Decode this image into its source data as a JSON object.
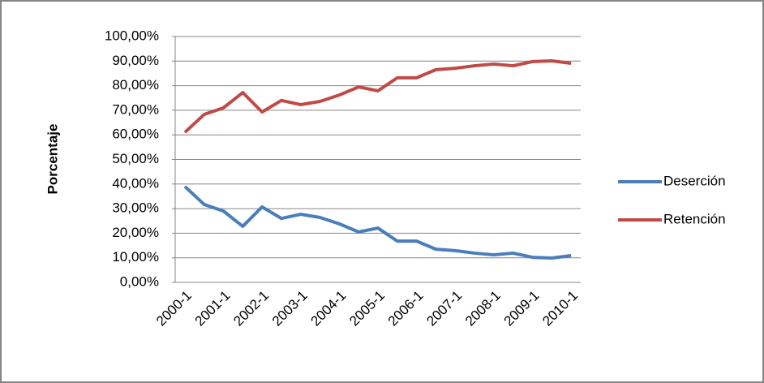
{
  "chart_data": {
    "type": "line",
    "y_label": "Porcentaje",
    "categories": [
      "2000-1",
      null,
      "2001-1",
      null,
      "2002-1",
      null,
      "2003-1",
      null,
      "2004-1",
      null,
      "2005-1",
      null,
      "2006-1",
      null,
      "2007-1",
      null,
      "2008-1",
      null,
      "2009-1",
      null,
      "2010-1"
    ],
    "series": [
      {
        "name": "Deserción",
        "color": "#4a7ebb",
        "values": [
          39,
          31.7,
          29,
          22.8,
          30.7,
          26,
          27.7,
          26.4,
          23.8,
          20.5,
          22.1,
          16.8,
          16.8,
          13.5,
          12.9,
          11.9,
          11.2,
          11.9,
          10.2,
          9.9,
          10.9
        ]
      },
      {
        "name": "Retención",
        "color": "#be4b48",
        "values": [
          61,
          68.3,
          71,
          77.2,
          69.3,
          74,
          72.3,
          73.6,
          76.2,
          79.5,
          77.9,
          83.2,
          83.2,
          86.5,
          87.1,
          88.1,
          88.8,
          88.1,
          89.8,
          90.1,
          89.1
        ]
      }
    ],
    "ylim": [
      0,
      100
    ],
    "yticks": [
      {
        "value": 0,
        "label": "0,00%"
      },
      {
        "value": 10,
        "label": "10,00%"
      },
      {
        "value": 20,
        "label": "20,00%"
      },
      {
        "value": 30,
        "label": "30,00%"
      },
      {
        "value": 40,
        "label": "40,00%"
      },
      {
        "value": 50,
        "label": "50,00%"
      },
      {
        "value": 60,
        "label": "60,00%"
      },
      {
        "value": 70,
        "label": "70,00%"
      },
      {
        "value": 80,
        "label": "80,00%"
      },
      {
        "value": 90,
        "label": "90,00%"
      },
      {
        "value": 100,
        "label": "100,00%"
      }
    ],
    "grid": true,
    "legend": "right"
  }
}
